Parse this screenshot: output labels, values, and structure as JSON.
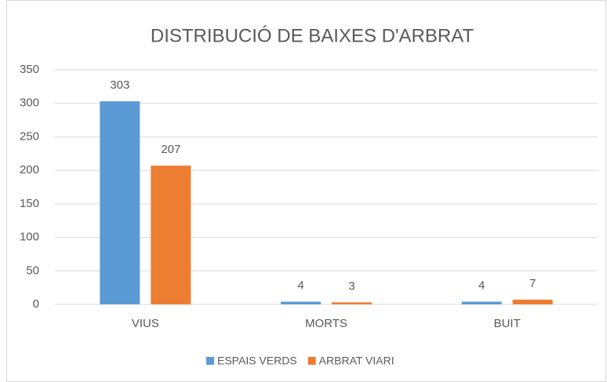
{
  "chart_data": {
    "type": "bar",
    "title": "DISTRIBUCIÓ DE BAIXES D'ARBRAT",
    "categories": [
      "VIUS",
      "MORTS",
      "BUIT"
    ],
    "series": [
      {
        "name": "ESPAIS VERDS",
        "color": "#5b9bd5",
        "values": [
          303,
          4,
          4
        ]
      },
      {
        "name": "ARBRAT VIARI",
        "color": "#ed7d31",
        "values": [
          207,
          3,
          7
        ]
      }
    ],
    "ylim": [
      0,
      350
    ],
    "yticks": [
      0,
      50,
      100,
      150,
      200,
      250,
      300,
      350
    ],
    "grid": true,
    "legend": "bottom"
  }
}
